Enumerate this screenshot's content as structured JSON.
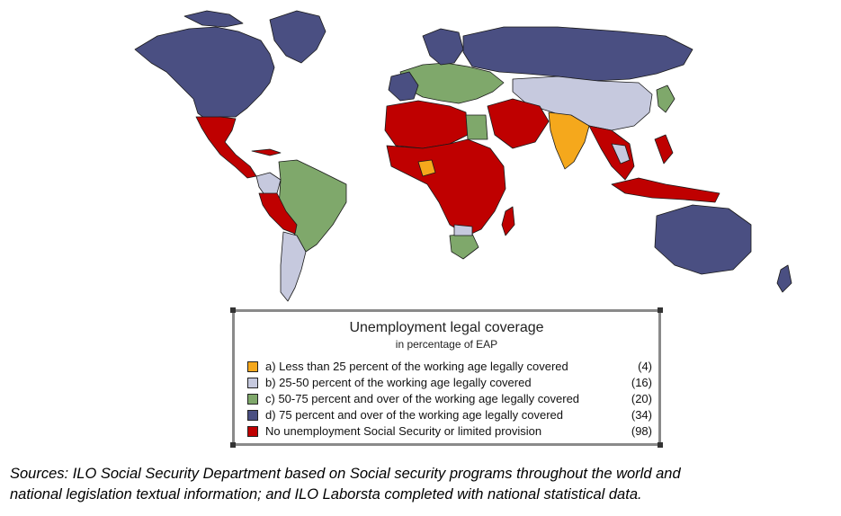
{
  "colors": {
    "a": "#f5a81c",
    "b": "#c6c9de",
    "c": "#7fa86b",
    "d": "#4a4f82",
    "none": "#bf0000",
    "border": "#1a1a1a"
  },
  "legend": {
    "title": "Unemployment legal coverage",
    "subtitle": "in percentage of EAP",
    "items": [
      {
        "key": "a",
        "label": "a) Less than 25 percent of the working age legally covered",
        "count": "(4)",
        "color": "#f5a81c"
      },
      {
        "key": "b",
        "label": "b) 25-50 percent of the working age legally covered",
        "count": "(16)",
        "color": "#c6c9de"
      },
      {
        "key": "c",
        "label": "c) 50-75 percent and over of the working age legally covered",
        "count": "(20)",
        "color": "#7fa86b"
      },
      {
        "key": "d",
        "label": "d) 75 percent and over of the working age legally covered",
        "count": "(34)",
        "color": "#4a4f82"
      },
      {
        "key": "none",
        "label": "No unemployment Social Security or limited provision",
        "count": "(98)",
        "color": "#bf0000"
      }
    ]
  },
  "sources": {
    "line1": "Sources: ILO Social Security Department based on Social security programs throughout the world and",
    "line2": "national legislation textual information; and ILO Laborsta completed with national statistical data."
  }
}
